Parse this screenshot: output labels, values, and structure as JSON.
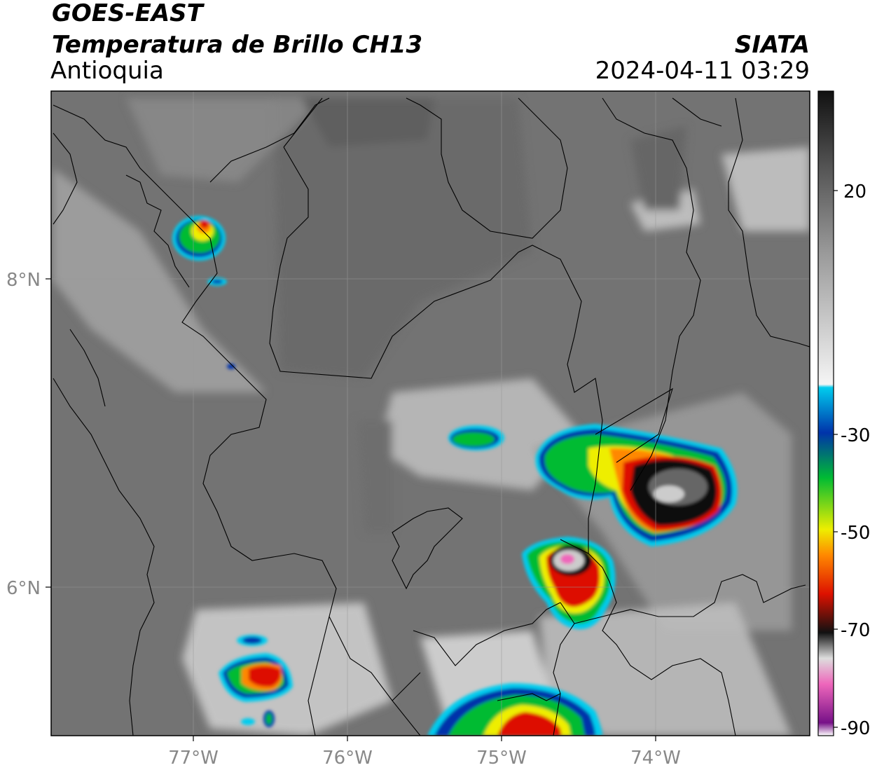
{
  "header": {
    "satellite": "GOES-EAST",
    "product": "Temperatura de Brillo CH13",
    "region": "Antioquia",
    "organization": "SIATA",
    "timestamp": "2024-04-11 03:29"
  },
  "axes": {
    "lon_labels": [
      "77°W",
      "76°W",
      "75°W",
      "74°W"
    ],
    "lat_labels": [
      "8°N",
      "6°N"
    ]
  },
  "colorbar": {
    "tick_labels": [
      "20",
      "-30",
      "-50",
      "-70",
      "-90"
    ],
    "colors": {
      "warm_top": "#111111",
      "mid_gray": "#888888",
      "white": "#f5f5f5",
      "cyan": "#00ccee",
      "blue": "#0033aa",
      "green": "#00bb33",
      "yellow": "#eeee00",
      "orange": "#ff8800",
      "red": "#dd1100",
      "black": "#111111",
      "pink": "#ee66bb",
      "purple": "#771188"
    }
  }
}
